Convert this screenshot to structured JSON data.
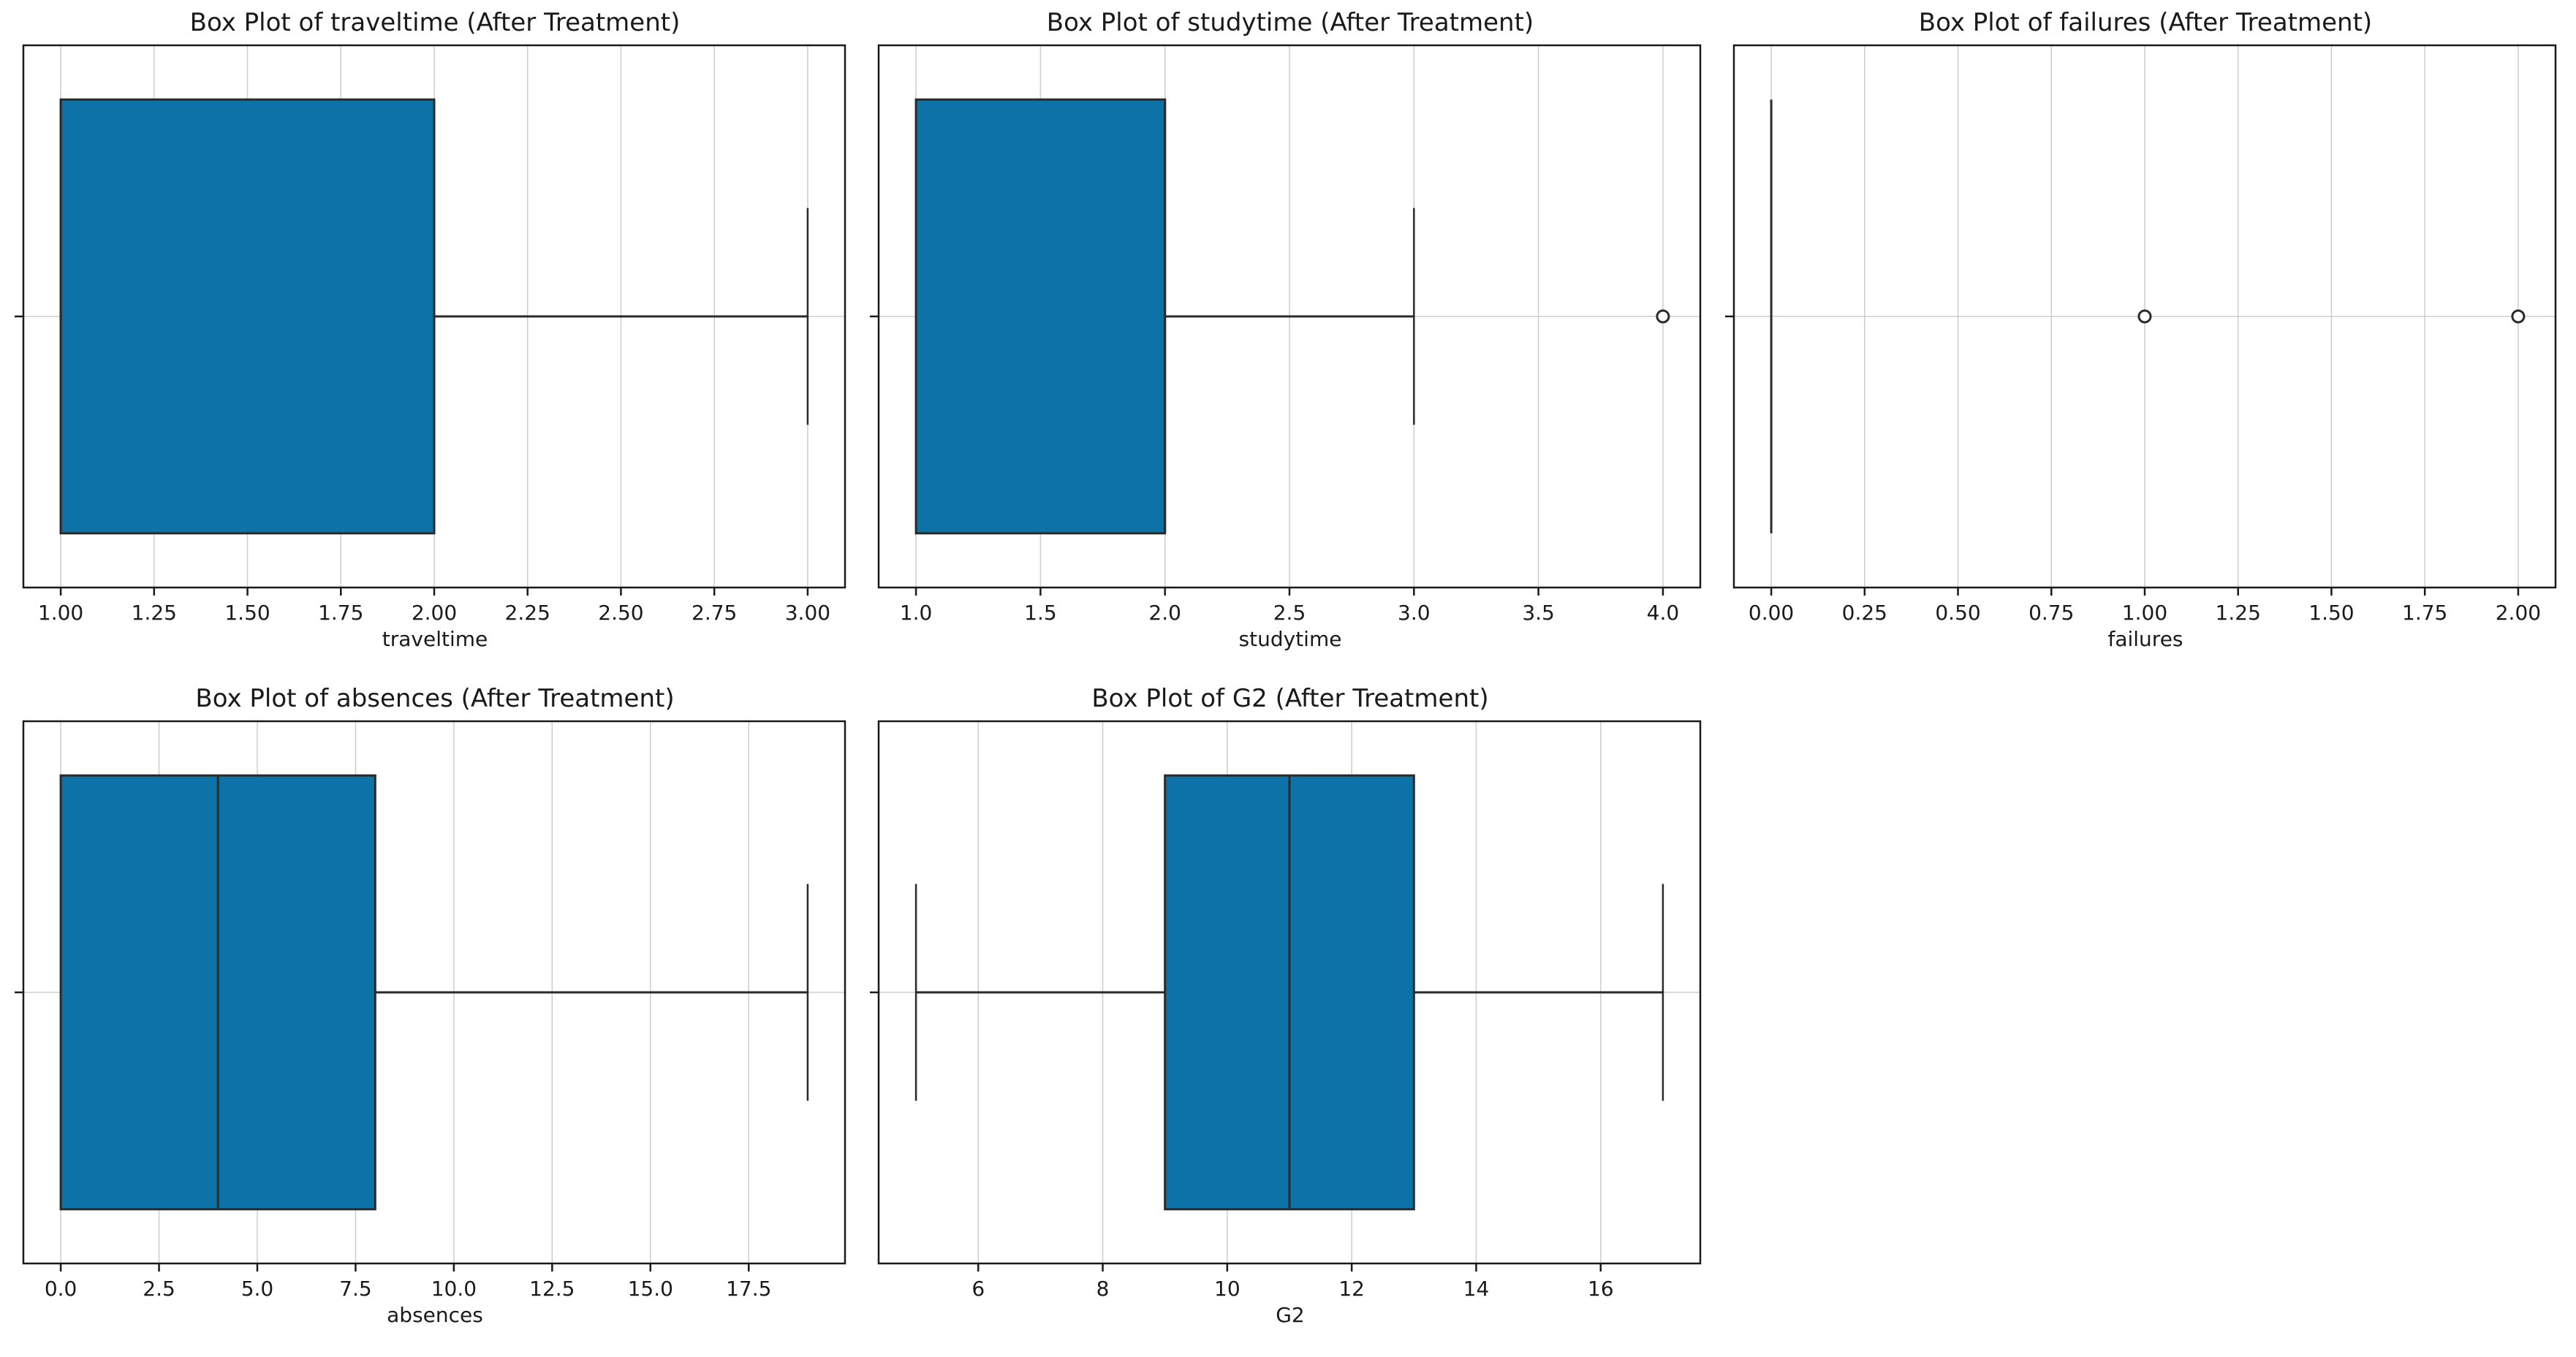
{
  "figure": {
    "background": "#ffffff",
    "rows": 2,
    "cols": 3,
    "empty_cells": 1
  },
  "style": {
    "box_fill": "#0d73a6",
    "line_color": "#2a2a2a",
    "spine_color": "#1a1a1a",
    "grid_color": "#cdcdcd",
    "text_color": "#1a1a1a",
    "flier_fill": "#ffffff"
  },
  "chart_data": [
    {
      "type": "box",
      "orientation": "horizontal",
      "title": "Box Plot of traveltime (After Treatment)",
      "xlabel": "traveltime",
      "ylabel": "",
      "grid": true,
      "xlim": [
        0.9,
        3.1
      ],
      "xticks": [
        1.0,
        1.25,
        1.5,
        1.75,
        2.0,
        2.25,
        2.5,
        2.75,
        3.0
      ],
      "xtick_labels": [
        "1.00",
        "1.25",
        "1.50",
        "1.75",
        "2.00",
        "2.25",
        "2.50",
        "2.75",
        "3.00"
      ],
      "stats": {
        "whislo": 1,
        "q1": 1,
        "med": 1,
        "q3": 2,
        "whishi": 3,
        "fliers": []
      }
    },
    {
      "type": "box",
      "orientation": "horizontal",
      "title": "Box Plot of studytime (After Treatment)",
      "xlabel": "studytime",
      "ylabel": "",
      "grid": true,
      "xlim": [
        0.85,
        4.15
      ],
      "xticks": [
        1.0,
        1.5,
        2.0,
        2.5,
        3.0,
        3.5,
        4.0
      ],
      "xtick_labels": [
        "1.0",
        "1.5",
        "2.0",
        "2.5",
        "3.0",
        "3.5",
        "4.0"
      ],
      "stats": {
        "whislo": 1,
        "q1": 1,
        "med": 2,
        "q3": 2,
        "whishi": 3,
        "fliers": [
          4
        ]
      }
    },
    {
      "type": "box",
      "orientation": "horizontal",
      "title": "Box Plot of failures (After Treatment)",
      "xlabel": "failures",
      "ylabel": "",
      "grid": true,
      "xlim": [
        -0.1,
        2.1
      ],
      "xticks": [
        0.0,
        0.25,
        0.5,
        0.75,
        1.0,
        1.25,
        1.5,
        1.75,
        2.0
      ],
      "xtick_labels": [
        "0.00",
        "0.25",
        "0.50",
        "0.75",
        "1.00",
        "1.25",
        "1.50",
        "1.75",
        "2.00"
      ],
      "stats": {
        "whislo": 0,
        "q1": 0,
        "med": 0,
        "q3": 0,
        "whishi": 0,
        "fliers": [
          1,
          2
        ]
      }
    },
    {
      "type": "box",
      "orientation": "horizontal",
      "title": "Box Plot of absences (After Treatment)",
      "xlabel": "absences",
      "ylabel": "",
      "grid": true,
      "xlim": [
        -0.95,
        19.95
      ],
      "xticks": [
        0.0,
        2.5,
        5.0,
        7.5,
        10.0,
        12.5,
        15.0,
        17.5
      ],
      "xtick_labels": [
        "0.0",
        "2.5",
        "5.0",
        "7.5",
        "10.0",
        "12.5",
        "15.0",
        "17.5"
      ],
      "stats": {
        "whislo": 0,
        "q1": 0,
        "med": 4,
        "q3": 8,
        "whishi": 19,
        "fliers": []
      }
    },
    {
      "type": "box",
      "orientation": "horizontal",
      "title": "Box Plot of G2 (After Treatment)",
      "xlabel": "G2",
      "ylabel": "",
      "grid": true,
      "xlim": [
        4.4,
        17.6
      ],
      "xticks": [
        6,
        8,
        10,
        12,
        14,
        16
      ],
      "xtick_labels": [
        "6",
        "8",
        "10",
        "12",
        "14",
        "16"
      ],
      "stats": {
        "whislo": 5,
        "q1": 9,
        "med": 11,
        "q3": 13,
        "whishi": 17,
        "fliers": []
      }
    }
  ]
}
